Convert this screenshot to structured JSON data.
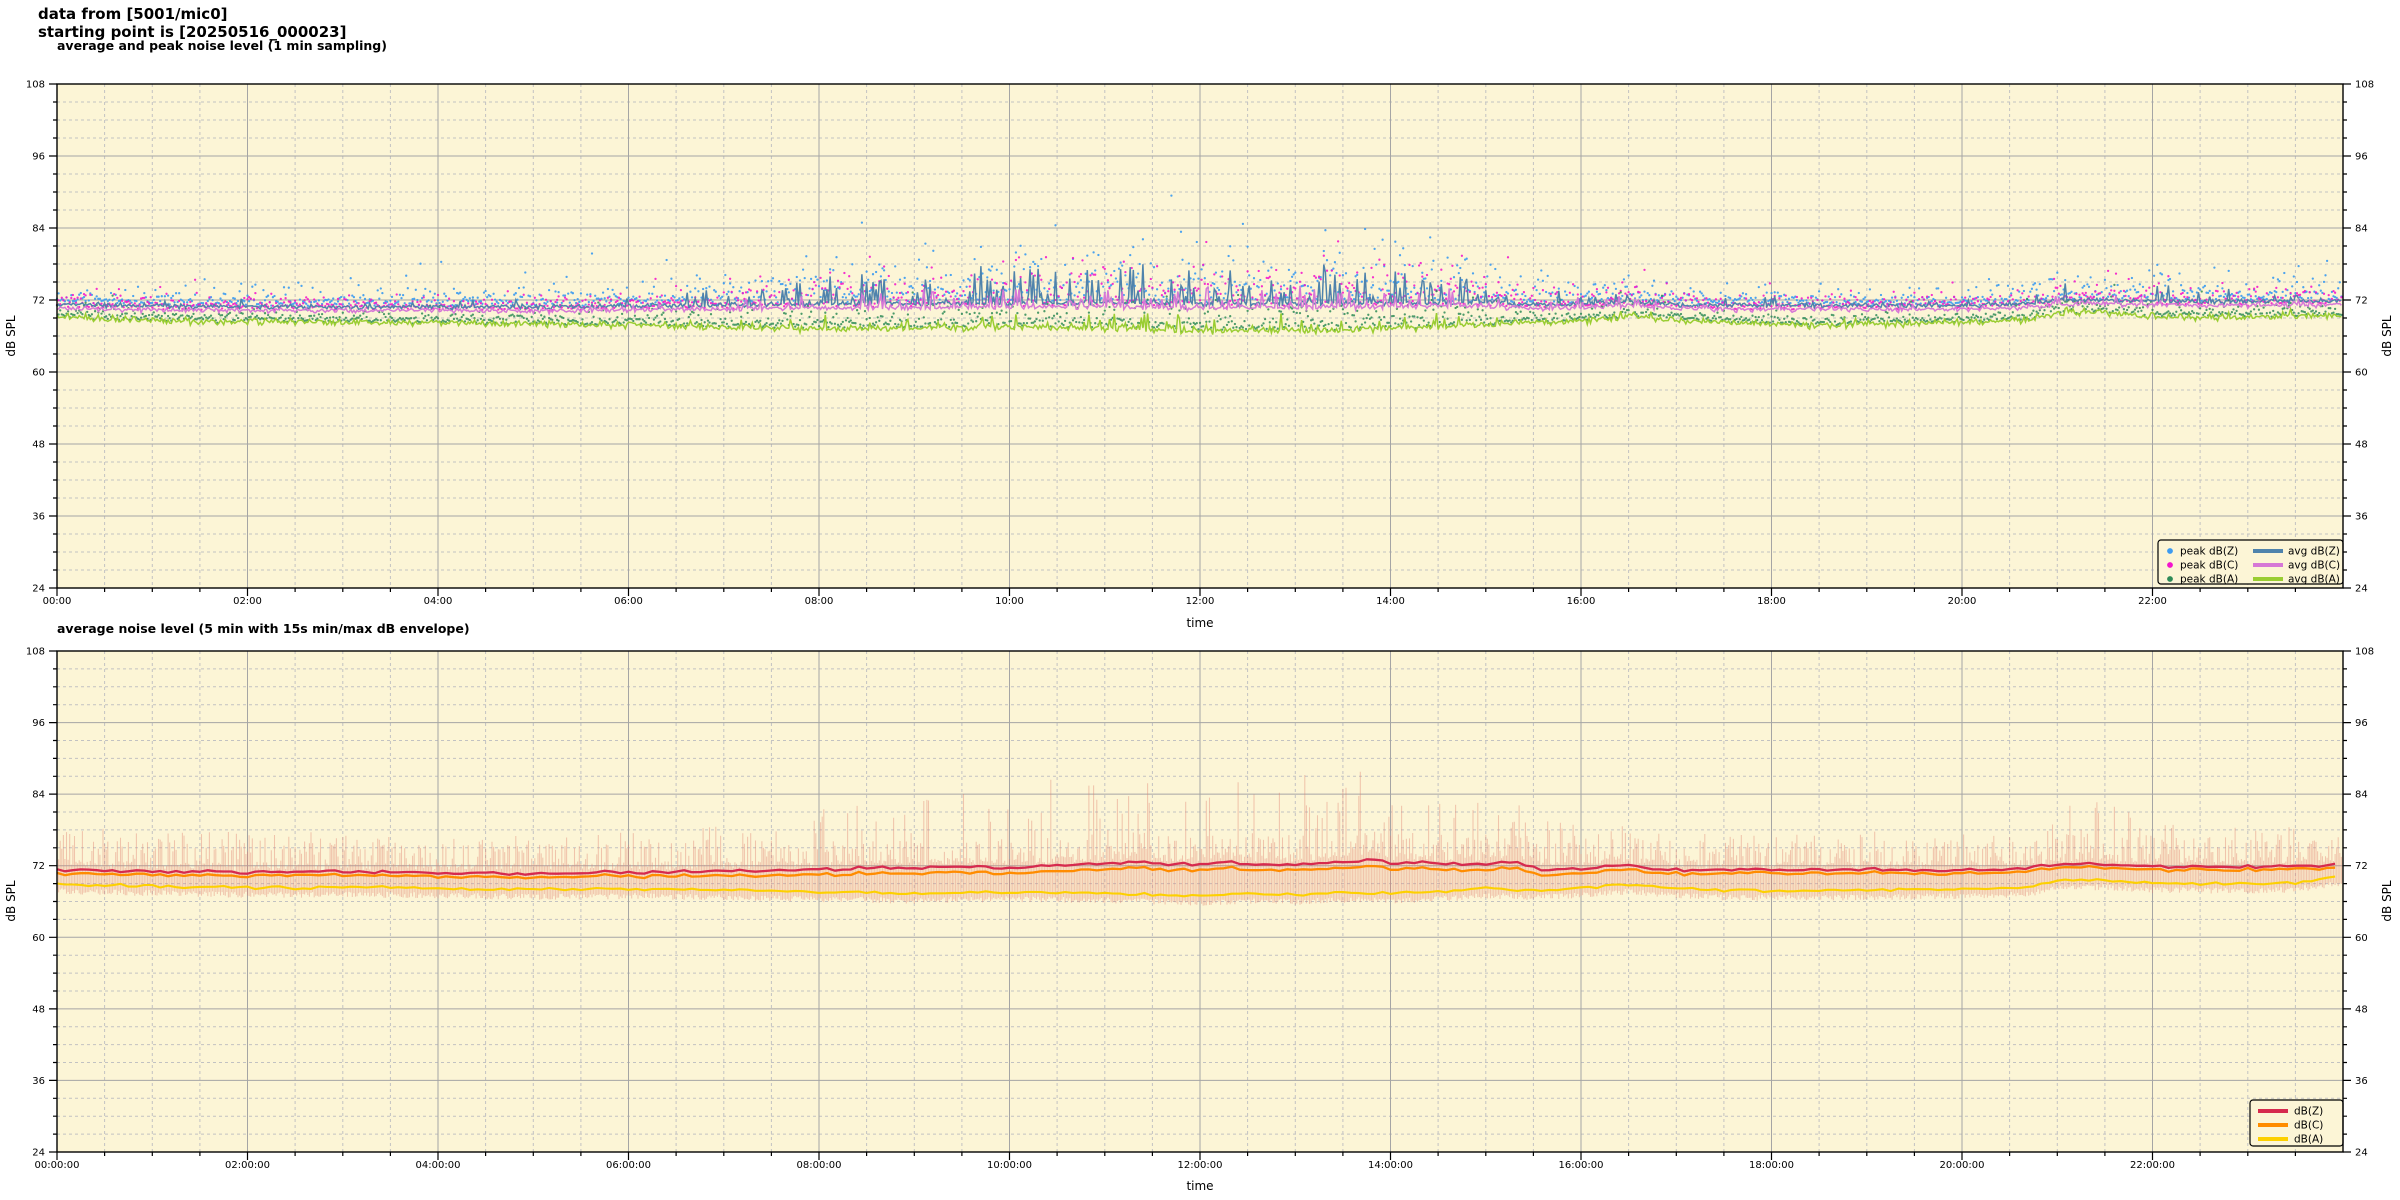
{
  "header": {
    "line1": "data from [5001/mic0]",
    "line2": "starting point is [20250516_000023]"
  },
  "palette": {
    "plot_background": "#fcf5d6",
    "page_background": "#ffffff",
    "grid_major": "#a5a5a5",
    "grid_minor": "#c2c2c2",
    "axis": "#000000"
  },
  "chart_data": [
    {
      "type": "scatter",
      "title": "average and peak noise level (1 min sampling)",
      "xlabel": "time",
      "ylabel": "dB SPL",
      "y2label": "dB SPL",
      "ylim": [
        24,
        108
      ],
      "xlim_hours": [
        0,
        24
      ],
      "y_ticks": [
        24,
        36,
        48,
        60,
        72,
        84,
        96,
        108
      ],
      "y_minor_step": 3,
      "x_major_hours": 2,
      "x_minor_hours": 0.5,
      "x_tick_labels": [
        "00:00",
        "02:00",
        "04:00",
        "06:00",
        "08:00",
        "10:00",
        "12:00",
        "14:00",
        "16:00",
        "18:00",
        "20:00",
        "22:00"
      ],
      "grid": true,
      "legend_position": "bottom-right",
      "legend": [
        {
          "label": "peak dB(Z)",
          "marker": "point",
          "color": "#3d9bf0"
        },
        {
          "label": "peak dB(C)",
          "marker": "point",
          "color": "#f414cc"
        },
        {
          "label": "peak dB(A)",
          "marker": "point",
          "color": "#2e8b57"
        },
        {
          "label": "avg dB(Z)",
          "marker": "line",
          "color": "#4f83ac"
        },
        {
          "label": "avg dB(C)",
          "marker": "line",
          "color": "#d678d6"
        },
        {
          "label": "avg dB(A)",
          "marker": "line",
          "color": "#9acd32"
        }
      ],
      "sampling_minutes": 1,
      "series": {
        "avg_z_base_db": [
          [
            0,
            71.2
          ],
          [
            1,
            71.0
          ],
          [
            2,
            70.9
          ],
          [
            3,
            70.8
          ],
          [
            4,
            70.9
          ],
          [
            5,
            70.8
          ],
          [
            6,
            71.0
          ],
          [
            7,
            71.1
          ],
          [
            8,
            71.3
          ],
          [
            9,
            71.4
          ],
          [
            10,
            71.5
          ],
          [
            11,
            71.5
          ],
          [
            12,
            71.3
          ],
          [
            13,
            71.4
          ],
          [
            14,
            71.5
          ],
          [
            15,
            71.6
          ],
          [
            15.5,
            71.2
          ],
          [
            16,
            71.3
          ],
          [
            16.5,
            71.8
          ],
          [
            17,
            71.2
          ],
          [
            18,
            71.1
          ],
          [
            19,
            71.1
          ],
          [
            20,
            71.1
          ],
          [
            20.8,
            71.4
          ],
          [
            21,
            71.9
          ],
          [
            21.5,
            72.0
          ],
          [
            22,
            71.8
          ],
          [
            22.5,
            71.7
          ],
          [
            23,
            71.7
          ],
          [
            23.5,
            71.8
          ],
          [
            24,
            71.9
          ]
        ],
        "avg_c_offset_db": -0.5,
        "avg_a_base_db": [
          [
            0,
            69.3
          ],
          [
            0.5,
            68.8
          ],
          [
            1,
            68.6
          ],
          [
            2,
            68.4
          ],
          [
            3,
            68.3
          ],
          [
            4,
            68.2
          ],
          [
            5,
            68.0
          ],
          [
            6,
            67.8
          ],
          [
            7,
            67.5
          ],
          [
            8,
            67.2
          ],
          [
            9,
            67.3
          ],
          [
            10,
            67.5
          ],
          [
            11,
            67.3
          ],
          [
            12,
            66.9
          ],
          [
            13,
            67.0
          ],
          [
            14,
            67.2
          ],
          [
            15,
            67.8
          ],
          [
            15.5,
            68.3
          ],
          [
            16,
            68.5
          ],
          [
            16.5,
            69.3
          ],
          [
            17,
            68.6
          ],
          [
            18,
            68.0
          ],
          [
            18.5,
            67.8
          ],
          [
            19,
            68.0
          ],
          [
            20,
            68.3
          ],
          [
            20.7,
            68.8
          ],
          [
            21,
            69.8
          ],
          [
            21.5,
            69.9
          ],
          [
            22,
            69.3
          ],
          [
            22.7,
            69.0
          ],
          [
            23,
            69.2
          ],
          [
            23.5,
            69.3
          ],
          [
            24,
            69.5
          ]
        ],
        "spike_probability": [
          [
            0,
            0.04
          ],
          [
            6,
            0.06
          ],
          [
            7,
            0.14
          ],
          [
            7.5,
            0.22
          ],
          [
            8,
            0.3
          ],
          [
            10,
            0.34
          ],
          [
            14,
            0.32
          ],
          [
            15,
            0.28
          ],
          [
            15.4,
            0.1
          ],
          [
            16,
            0.12
          ],
          [
            16.5,
            0.22
          ],
          [
            17,
            0.06
          ],
          [
            18,
            0.04
          ],
          [
            20.5,
            0.06
          ],
          [
            21,
            0.15
          ],
          [
            22,
            0.12
          ],
          [
            23,
            0.1
          ],
          [
            24,
            0.08
          ]
        ],
        "spike_amplitude_db": [
          [
            0,
            1.5
          ],
          [
            6,
            1.6
          ],
          [
            7,
            3.0
          ],
          [
            8,
            5.0
          ],
          [
            10,
            6.5
          ],
          [
            14,
            6.5
          ],
          [
            15,
            5.0
          ],
          [
            15.5,
            2.0
          ],
          [
            16.5,
            3.5
          ],
          [
            17,
            1.5
          ],
          [
            20.5,
            1.6
          ],
          [
            21,
            3.0
          ],
          [
            22,
            2.5
          ],
          [
            23,
            2.0
          ],
          [
            24,
            2.0
          ]
        ],
        "peak_spread_db": [
          [
            0,
            2.4
          ],
          [
            5,
            2.2
          ],
          [
            6,
            2.6
          ],
          [
            7,
            3.5
          ],
          [
            8,
            5.0
          ],
          [
            9,
            5.5
          ],
          [
            10,
            6.5
          ],
          [
            11,
            6.8
          ],
          [
            12,
            6.2
          ],
          [
            13,
            6.2
          ],
          [
            14,
            6.8
          ],
          [
            14.8,
            5.5
          ],
          [
            15.3,
            3.5
          ],
          [
            16,
            2.8
          ],
          [
            16.6,
            3.4
          ],
          [
            17,
            2.0
          ],
          [
            18,
            1.9
          ],
          [
            19,
            2.0
          ],
          [
            20,
            2.0
          ],
          [
            20.7,
            2.4
          ],
          [
            21,
            3.2
          ],
          [
            21.7,
            3.4
          ],
          [
            22,
            3.0
          ],
          [
            23,
            2.6
          ],
          [
            24,
            2.6
          ]
        ],
        "peak_max_db": {
          "z": 90.5,
          "c": 87,
          "a": 80
        }
      }
    },
    {
      "type": "line",
      "title": "average noise level (5 min with 15s min/max dB envelope)",
      "xlabel": "time",
      "ylabel": "dB SPL",
      "y2label": "dB SPL",
      "ylim": [
        24,
        108
      ],
      "xlim_hours": [
        0,
        24
      ],
      "y_ticks": [
        24,
        36,
        48,
        60,
        72,
        84,
        96,
        108
      ],
      "y_minor_step": 3,
      "x_major_hours": 2,
      "x_minor_hours": 0.5,
      "x_tick_labels": [
        "00:00:00",
        "02:00:00",
        "04:00:00",
        "06:00:00",
        "08:00:00",
        "10:00:00",
        "12:00:00",
        "14:00:00",
        "16:00:00",
        "18:00:00",
        "20:00:00",
        "22:00:00"
      ],
      "grid": true,
      "legend_position": "bottom-right",
      "legend": [
        {
          "label": "dB(Z)",
          "marker": "line",
          "color": "#d62a4e"
        },
        {
          "label": "dB(C)",
          "marker": "line",
          "color": "#ff8c00"
        },
        {
          "label": "dB(A)",
          "marker": "line",
          "color": "#fdd000"
        }
      ],
      "sampling_minutes": 5,
      "series": {
        "db_z_base": [
          [
            0,
            71.4
          ],
          [
            1,
            71.1
          ],
          [
            2,
            70.9
          ],
          [
            3,
            71.0
          ],
          [
            4,
            70.8
          ],
          [
            5,
            70.7
          ],
          [
            6,
            70.9
          ],
          [
            7,
            71.1
          ],
          [
            8,
            71.3
          ],
          [
            8.5,
            71.6
          ],
          [
            9,
            71.5
          ],
          [
            9.5,
            71.8
          ],
          [
            10,
            71.6
          ],
          [
            10.5,
            72.0
          ],
          [
            11,
            72.4
          ],
          [
            11.3,
            72.8
          ],
          [
            11.6,
            72.2
          ],
          [
            12,
            72.3
          ],
          [
            12.3,
            72.8
          ],
          [
            12.6,
            72.1
          ],
          [
            13,
            72.2
          ],
          [
            13.5,
            72.6
          ],
          [
            13.8,
            73.2
          ],
          [
            14,
            72.4
          ],
          [
            14.3,
            72.6
          ],
          [
            14.6,
            72.2
          ],
          [
            15,
            72.4
          ],
          [
            15.3,
            72.6
          ],
          [
            15.6,
            71.4
          ],
          [
            16,
            71.5
          ],
          [
            16.4,
            72.2
          ],
          [
            16.8,
            71.4
          ],
          [
            17,
            71.3
          ],
          [
            18,
            71.2
          ],
          [
            19,
            71.3
          ],
          [
            20,
            71.2
          ],
          [
            20.6,
            71.4
          ],
          [
            21,
            72.2
          ],
          [
            21.4,
            72.4
          ],
          [
            21.8,
            71.9
          ],
          [
            22,
            71.9
          ],
          [
            22.5,
            71.8
          ],
          [
            23,
            71.8
          ],
          [
            23.5,
            71.9
          ],
          [
            24,
            72.1
          ]
        ],
        "db_c_gap_below_z": [
          [
            0,
            0.6
          ],
          [
            6,
            0.6
          ],
          [
            8,
            0.9
          ],
          [
            15,
            1.0
          ],
          [
            16,
            0.8
          ],
          [
            17,
            0.6
          ],
          [
            24,
            0.5
          ]
        ],
        "db_a_base": [
          [
            0,
            68.9
          ],
          [
            1,
            68.6
          ],
          [
            2,
            68.3
          ],
          [
            3,
            68.4
          ],
          [
            4,
            68.2
          ],
          [
            5,
            68.0
          ],
          [
            6,
            68.1
          ],
          [
            7,
            67.9
          ],
          [
            8,
            67.6
          ],
          [
            9,
            67.3
          ],
          [
            10,
            67.6
          ],
          [
            11,
            67.4
          ],
          [
            12,
            66.9
          ],
          [
            12.5,
            67.3
          ],
          [
            13,
            67.1
          ],
          [
            13.5,
            67.5
          ],
          [
            14,
            67.3
          ],
          [
            14.7,
            67.8
          ],
          [
            15,
            68.2
          ],
          [
            15.5,
            67.9
          ],
          [
            16,
            68.2
          ],
          [
            16.5,
            68.9
          ],
          [
            17,
            68.2
          ],
          [
            17.5,
            67.9
          ],
          [
            18,
            67.8
          ],
          [
            19,
            67.9
          ],
          [
            20,
            68.1
          ],
          [
            20.7,
            68.4
          ],
          [
            21,
            69.5
          ],
          [
            21.5,
            69.6
          ],
          [
            22,
            69.1
          ],
          [
            23,
            69.0
          ],
          [
            23.5,
            69.2
          ],
          [
            24,
            70.3
          ]
        ],
        "envelope": {
          "color": "#e08070",
          "opacity": 0.42,
          "max_extra_db": [
            [
              0,
              7
            ],
            [
              1,
              6
            ],
            [
              2,
              6
            ],
            [
              3,
              5.5
            ],
            [
              4,
              5
            ],
            [
              5,
              5.5
            ],
            [
              6,
              6.5
            ],
            [
              7,
              7.5
            ],
            [
              8,
              9.5
            ],
            [
              9,
              11
            ],
            [
              10,
              13.5
            ],
            [
              10.8,
              14.5
            ],
            [
              11.5,
              14
            ],
            [
              12,
              14.5
            ],
            [
              13,
              13.5
            ],
            [
              14,
              13.8
            ],
            [
              14.8,
              12
            ],
            [
              15.3,
              9
            ],
            [
              16,
              6.5
            ],
            [
              17,
              4.5
            ],
            [
              18,
              4
            ],
            [
              19,
              5
            ],
            [
              20,
              4.5
            ],
            [
              20.8,
              7
            ],
            [
              21,
              10.5
            ],
            [
              21.6,
              11.5
            ],
            [
              22,
              7
            ],
            [
              22.6,
              6
            ],
            [
              23,
              5.5
            ],
            [
              24,
              6
            ]
          ],
          "min_below_a_db": 0.7,
          "cap_db": 89
        }
      }
    }
  ]
}
